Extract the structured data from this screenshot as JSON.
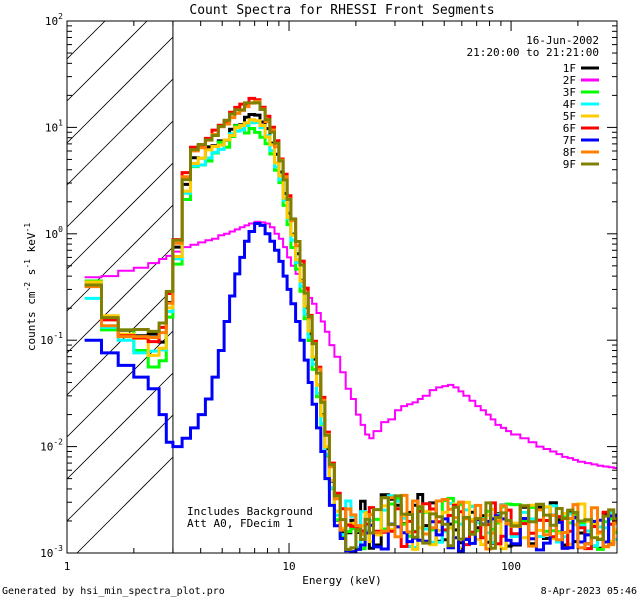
{
  "chart_data": {
    "type": "line",
    "title": "Count Spectra for RHESSI Front Segments",
    "xlabel": "Energy (keV)",
    "ylabel_parts": [
      "counts cm",
      "-2",
      " s",
      "-1",
      " keV",
      "-1"
    ],
    "xscale": "log",
    "yscale": "log",
    "xlim": [
      1,
      300
    ],
    "ylim": [
      0.001,
      100
    ],
    "x_ticks": [
      {
        "value": 1,
        "label": "1"
      },
      {
        "value": 10,
        "label": "10"
      },
      {
        "value": 100,
        "label": "100"
      }
    ],
    "y_ticks": [
      {
        "value": 0.001,
        "mant": "10",
        "exp": "-3"
      },
      {
        "value": 0.01,
        "mant": "10",
        "exp": "-2"
      },
      {
        "value": 0.1,
        "mant": "10",
        "exp": "-1"
      },
      {
        "value": 1,
        "mant": "10",
        "exp": "0"
      },
      {
        "value": 10,
        "mant": "10",
        "exp": "1"
      },
      {
        "value": 100,
        "mant": "10",
        "exp": "2"
      }
    ],
    "attenuator_cutoff_kev": 3,
    "annotations": {
      "date": "16-Jun-2002",
      "time_range": "21:20:00 to 21:21:00",
      "note1": "Includes Background",
      "note2": "Att A0, FDecim 1"
    },
    "energy_edges": [
      1.2,
      1.43,
      1.7,
      2.0,
      2.32,
      2.6,
      2.8,
      3.0,
      3.3,
      3.6,
      3.9,
      4.2,
      4.5,
      4.8,
      5.1,
      5.4,
      5.7,
      6.0,
      6.3,
      6.6,
      7.0,
      7.4,
      7.8,
      8.2,
      8.6,
      9.0,
      9.4,
      9.8,
      10.2,
      10.7,
      11.2,
      11.7,
      12.2,
      12.7,
      13.3,
      13.9,
      14.5,
      15.2,
      16.0,
      17.0,
      18.0,
      19.0,
      20.0,
      21.0,
      22.0,
      23.0,
      24.0,
      26.0,
      28.0,
      30.0,
      32.0,
      34.0,
      36.0,
      38.0,
      40.0,
      43.0,
      46.0,
      49.0,
      52.0,
      55.0,
      58.0,
      61.0,
      65.0,
      69.0,
      73.0,
      77.0,
      81.0,
      85.0,
      90.0,
      95.0,
      100.0,
      110.0,
      120.0,
      130.0,
      140.0,
      150.0,
      160.0,
      170.0,
      180.0,
      190.0,
      200.0,
      215.0,
      230.0,
      245.0,
      260.0,
      275.0,
      290.0,
      300.0
    ],
    "series": [
      {
        "name": "1F",
        "color": "#000000",
        "values": [
          0.33,
          0.135,
          0.124,
          0.11,
          0.114,
          0.096,
          0.226,
          0.75,
          2.91,
          5.18,
          5.15,
          6.56,
          6.71,
          7.47,
          7.56,
          9.6,
          10.45,
          10.57,
          12.46,
          13.22,
          13.04,
          11.23,
          9.74,
          7.12,
          5.59,
          3.81,
          2.39,
          1.56,
          0.993,
          0.649,
          0.366,
          0.204,
          0.115,
          0.0664,
          0.0378,
          0.02,
          0.00958,
          0.00474,
          0.00204,
          0.00158,
          0.00155,
          0.00203,
          0.00156,
          0.00306,
          0.00161,
          0.00111,
          0.00119,
          0.00353,
          0.0032,
          0.00281,
          0.00189,
          0.00241,
          0.00281,
          0.00355,
          0.00181,
          0.00296,
          0.00129,
          0.00133,
          0.00187,
          0.00165,
          0.00125,
          0.00135,
          0.00242,
          0.00173,
          0.00224,
          0.00126,
          0.00123,
          0.00235,
          0.00282,
          0.00116,
          0.00119,
          0.00269,
          0.00122,
          0.00269,
          0.00137,
          0.00297,
          0.00205,
          0.00119,
          0.00242,
          0.00128,
          0.00154,
          0.00122,
          0.00187,
          0.00111,
          0.00233,
          0.00126,
          0.00227
        ]
      },
      {
        "name": "2F",
        "color": "#ff00ff",
        "values": [
          0.39,
          0.4,
          0.45,
          0.48,
          0.53,
          0.58,
          0.62,
          0.68,
          0.75,
          0.79,
          0.83,
          0.87,
          0.9,
          0.97,
          1.0,
          1.05,
          1.1,
          1.15,
          1.2,
          1.25,
          1.3,
          1.28,
          1.25,
          1.15,
          1.0,
          0.9,
          0.75,
          0.6,
          0.5,
          0.42,
          0.35,
          0.3,
          0.25,
          0.22,
          0.18,
          0.15,
          0.12,
          0.09,
          0.07,
          0.05,
          0.035,
          0.028,
          0.02,
          0.016,
          0.013,
          0.012,
          0.014,
          0.017,
          0.018,
          0.022,
          0.024,
          0.025,
          0.026,
          0.028,
          0.03,
          0.034,
          0.036,
          0.037,
          0.038,
          0.036,
          0.033,
          0.03,
          0.027,
          0.024,
          0.022,
          0.02,
          0.018,
          0.016,
          0.015,
          0.014,
          0.013,
          0.012,
          0.011,
          0.01,
          0.0095,
          0.009,
          0.0085,
          0.008,
          0.0078,
          0.0075,
          0.0072,
          0.007,
          0.0068,
          0.0066,
          0.0065,
          0.0064,
          0.0063
        ]
      },
      {
        "name": "3F",
        "color": "#00ff00",
        "values": [
          0.36,
          0.125,
          0.125,
          0.08,
          0.056,
          0.064,
          0.165,
          0.519,
          2.1,
          4.28,
          4.43,
          4.83,
          5.75,
          7.27,
          6.5,
          8.21,
          10.37,
          9.62,
          8.86,
          9.77,
          8.97,
          8.07,
          7.01,
          5.62,
          3.95,
          3.03,
          1.85,
          1.22,
          0.743,
          0.466,
          0.288,
          0.159,
          0.0993,
          0.0532,
          0.0294,
          0.0162,
          0.00817,
          0.00403,
          0.00206,
          0.00146,
          0.00159,
          0.0017,
          0.00162,
          0.0011,
          0.0024,
          0.00231,
          0.00207,
          0.00168,
          0.00289,
          0.00326,
          0.00187,
          0.00144,
          0.0016,
          0.00257,
          0.00242,
          0.00165,
          0.00195,
          0.00311,
          0.00326,
          0.00196,
          0.00285,
          0.00212,
          0.00275,
          0.00162,
          0.00141,
          0.00246,
          0.00167,
          0.00191,
          0.00271,
          0.00288,
          0.00285,
          0.00198,
          0.00268,
          0.00204,
          0.0016,
          0.00162,
          0.00159,
          0.00218,
          0.00192,
          0.00231,
          0.00191,
          0.00149,
          0.00115,
          0.00108,
          0.00197,
          0.00209,
          0.00157
        ]
      },
      {
        "name": "4F",
        "color": "#00ffff",
        "values": [
          0.247,
          0.132,
          0.1,
          0.076,
          0.079,
          0.081,
          0.186,
          0.584,
          2.4,
          4.34,
          4.44,
          5.16,
          5.83,
          6.21,
          7.61,
          8.71,
          9.24,
          9.47,
          10.42,
          11.06,
          11.12,
          9.94,
          8.34,
          6.05,
          4.25,
          3.21,
          2.07,
          1.39,
          0.872,
          0.537,
          0.322,
          0.175,
          0.107,
          0.0594,
          0.0317,
          0.0165,
          0.00848,
          0.00409,
          0.00226,
          0.00149,
          0.00308,
          0.00221,
          0.00113,
          0.00245,
          0.00161,
          0.00202,
          0.00155,
          0.00253,
          0.00345,
          0.00306,
          0.00212,
          0.00115,
          0.00113,
          0.00243,
          0.00168,
          0.00126,
          0.00126,
          0.0016,
          0.00292,
          0.00276,
          0.00187,
          0.00254,
          0.00273,
          0.00192,
          0.00211,
          0.00155,
          0.00125,
          0.00231,
          0.0028,
          0.00184,
          0.00143,
          0.00241,
          0.00209,
          0.00143,
          0.0027,
          0.00277,
          0.00127,
          0.00142,
          0.00233,
          0.00211,
          0.00181,
          0.00161,
          0.00117,
          0.00176,
          0.00173,
          0.0024,
          0.00134
        ]
      },
      {
        "name": "5F",
        "color": "#ffcc00",
        "values": [
          0.352,
          0.17,
          0.114,
          0.104,
          0.072,
          0.084,
          0.201,
          0.612,
          2.52,
          4.58,
          5.16,
          6.14,
          6.62,
          6.82,
          7.61,
          8.39,
          9.96,
          10.42,
          11.02,
          11.79,
          11.56,
          10.41,
          8.13,
          6.88,
          4.66,
          3.5,
          2.17,
          1.42,
          0.973,
          0.57,
          0.36,
          0.209,
          0.122,
          0.0697,
          0.0376,
          0.0195,
          0.00994,
          0.00481,
          0.00247,
          0.00171,
          0.00185,
          0.00189,
          0.00173,
          0.0018,
          0.00238,
          0.00128,
          0.00148,
          0.00277,
          0.00167,
          0.00177,
          0.00225,
          0.00154,
          0.00108,
          0.00173,
          0.00246,
          0.0012,
          0.00163,
          0.00242,
          0.00172,
          0.00288,
          0.00112,
          0.00299,
          0.00207,
          0.00134,
          0.0012,
          0.00227,
          0.00257,
          0.00211,
          0.0011,
          0.00184,
          0.00191,
          0.00139,
          0.00281,
          0.00163,
          0.00271,
          0.00137,
          0.00153,
          0.00235,
          0.00121,
          0.00184,
          0.00289,
          0.00198,
          0.00188,
          0.00136,
          0.00114,
          0.00129,
          0.00165
        ]
      },
      {
        "name": "6F",
        "color": "#ff0000",
        "values": [
          0.325,
          0.155,
          0.11,
          0.105,
          0.097,
          0.132,
          0.275,
          0.882,
          3.76,
          6.52,
          6.7,
          7.89,
          9.44,
          10.49,
          11.45,
          13.89,
          15.4,
          16.55,
          16.53,
          18.72,
          18.23,
          15.48,
          12.75,
          10.02,
          7.48,
          5.05,
          3.63,
          2.28,
          1.37,
          0.846,
          0.554,
          0.309,
          0.171,
          0.0976,
          0.0558,
          0.029,
          0.0137,
          0.007,
          0.00364,
          0.00261,
          0.00183,
          0.00178,
          0.00171,
          0.00161,
          0.00187,
          0.00267,
          0.0016,
          0.00157,
          0.0016,
          0.00261,
          0.00115,
          0.00198,
          0.00158,
          0.00247,
          0.0029,
          0.00259,
          0.00197,
          0.00165,
          0.00225,
          0.0028,
          0.00244,
          0.0012,
          0.00157,
          0.00206,
          0.00139,
          0.00185,
          0.00296,
          0.00122,
          0.00144,
          0.00253,
          0.00152,
          0.00189,
          0.00153,
          0.00203,
          0.00202,
          0.00142,
          0.0022,
          0.00111,
          0.0016,
          0.00215,
          0.00173,
          0.0011,
          0.00177,
          0.00157,
          0.00242,
          0.00186,
          0.0021
        ]
      },
      {
        "name": "7F",
        "color": "#0000ff",
        "values": [
          0.1,
          0.076,
          0.058,
          0.045,
          0.035,
          0.02,
          0.011,
          0.01,
          0.012,
          0.015,
          0.02,
          0.028,
          0.045,
          0.08,
          0.15,
          0.26,
          0.42,
          0.6,
          0.85,
          1.05,
          1.25,
          1.2,
          1.0,
          0.85,
          0.7,
          0.55,
          0.4,
          0.3,
          0.22,
          0.15,
          0.1,
          0.065,
          0.04,
          0.025,
          0.015,
          0.009,
          0.005,
          0.0028,
          0.0018,
          0.00137,
          0.00105,
          0.00103,
          0.00108,
          0.00119,
          0.00154,
          0.00182,
          0.00114,
          0.00109,
          0.00187,
          0.00176,
          0.00155,
          0.00128,
          0.00138,
          0.00132,
          0.00129,
          0.00197,
          0.00148,
          0.00209,
          0.00112,
          0.00139,
          0.00104,
          0.00134,
          0.00123,
          0.00208,
          0.00187,
          0.00198,
          0.00209,
          0.00223,
          0.00209,
          0.00132,
          0.00122,
          0.00211,
          0.00136,
          0.00107,
          0.00124,
          0.00226,
          0.00194,
          0.00111,
          0.00112,
          0.00216,
          0.00127,
          0.00148,
          0.00198,
          0.00203,
          0.00127,
          0.00223,
          0.00222
        ]
      },
      {
        "name": "8F",
        "color": "#ff8000",
        "values": [
          0.319,
          0.137,
          0.108,
          0.108,
          0.106,
          0.118,
          0.222,
          0.815,
          3.43,
          6.02,
          6.45,
          7.59,
          8.57,
          10.15,
          10.76,
          12.35,
          13.55,
          14.45,
          15.67,
          16.92,
          17.57,
          14.86,
          11.32,
          9.45,
          6.59,
          4.93,
          3.43,
          2.12,
          1.33,
          0.771,
          0.509,
          0.279,
          0.162,
          0.0934,
          0.0535,
          0.0273,
          0.013,
          0.00646,
          0.00324,
          0.00164,
          0.00259,
          0.00228,
          0.00181,
          0.0015,
          0.00207,
          0.0023,
          0.00155,
          0.00161,
          0.00331,
          0.00142,
          0.00348,
          0.00158,
          0.00308,
          0.00274,
          0.00151,
          0.00173,
          0.00308,
          0.00318,
          0.00258,
          0.00215,
          0.00301,
          0.0021,
          0.00198,
          0.0028,
          0.00207,
          0.00109,
          0.00154,
          0.00199,
          0.00278,
          0.00188,
          0.00178,
          0.00277,
          0.00116,
          0.00254,
          0.00148,
          0.00225,
          0.00133,
          0.00156,
          0.00211,
          0.00285,
          0.00112,
          0.00122,
          0.00266,
          0.00154,
          0.00115,
          0.0012,
          0.00191
        ]
      },
      {
        "name": "9F",
        "color": "#808000",
        "values": [
          0.33,
          0.163,
          0.125,
          0.126,
          0.121,
          0.145,
          0.287,
          0.869,
          3.23,
          6.18,
          6.9,
          7.61,
          8.39,
          10.22,
          11.69,
          13.35,
          14.66,
          14.59,
          16.98,
          16.98,
          16.98,
          14.73,
          11.84,
          9.04,
          7.09,
          4.84,
          3.21,
          2.1,
          1.38,
          0.847,
          0.509,
          0.277,
          0.167,
          0.0926,
          0.0491,
          0.026,
          0.0128,
          0.00678,
          0.00345,
          0.00206,
          0.00108,
          0.00112,
          0.00167,
          0.00134,
          0.00207,
          0.00154,
          0.00256,
          0.0033,
          0.00185,
          0.00344,
          0.00232,
          0.0023,
          0.00141,
          0.00271,
          0.00124,
          0.00233,
          0.00219,
          0.00186,
          0.00117,
          0.00269,
          0.00135,
          0.00216,
          0.0015,
          0.00211,
          0.00184,
          0.00296,
          0.00111,
          0.00216,
          0.00238,
          0.00202,
          0.0018,
          0.00278,
          0.00197,
          0.00287,
          0.00227,
          0.00182,
          0.00262,
          0.00211,
          0.00253,
          0.0024,
          0.002,
          0.00205,
          0.00139,
          0.00134,
          0.00222,
          0.00254,
          0.0021
        ]
      }
    ]
  },
  "footer": {
    "generated_by": "Generated by hsi_min_spectra_plot.pro",
    "timestamp": "8-Apr-2023 05:46"
  }
}
